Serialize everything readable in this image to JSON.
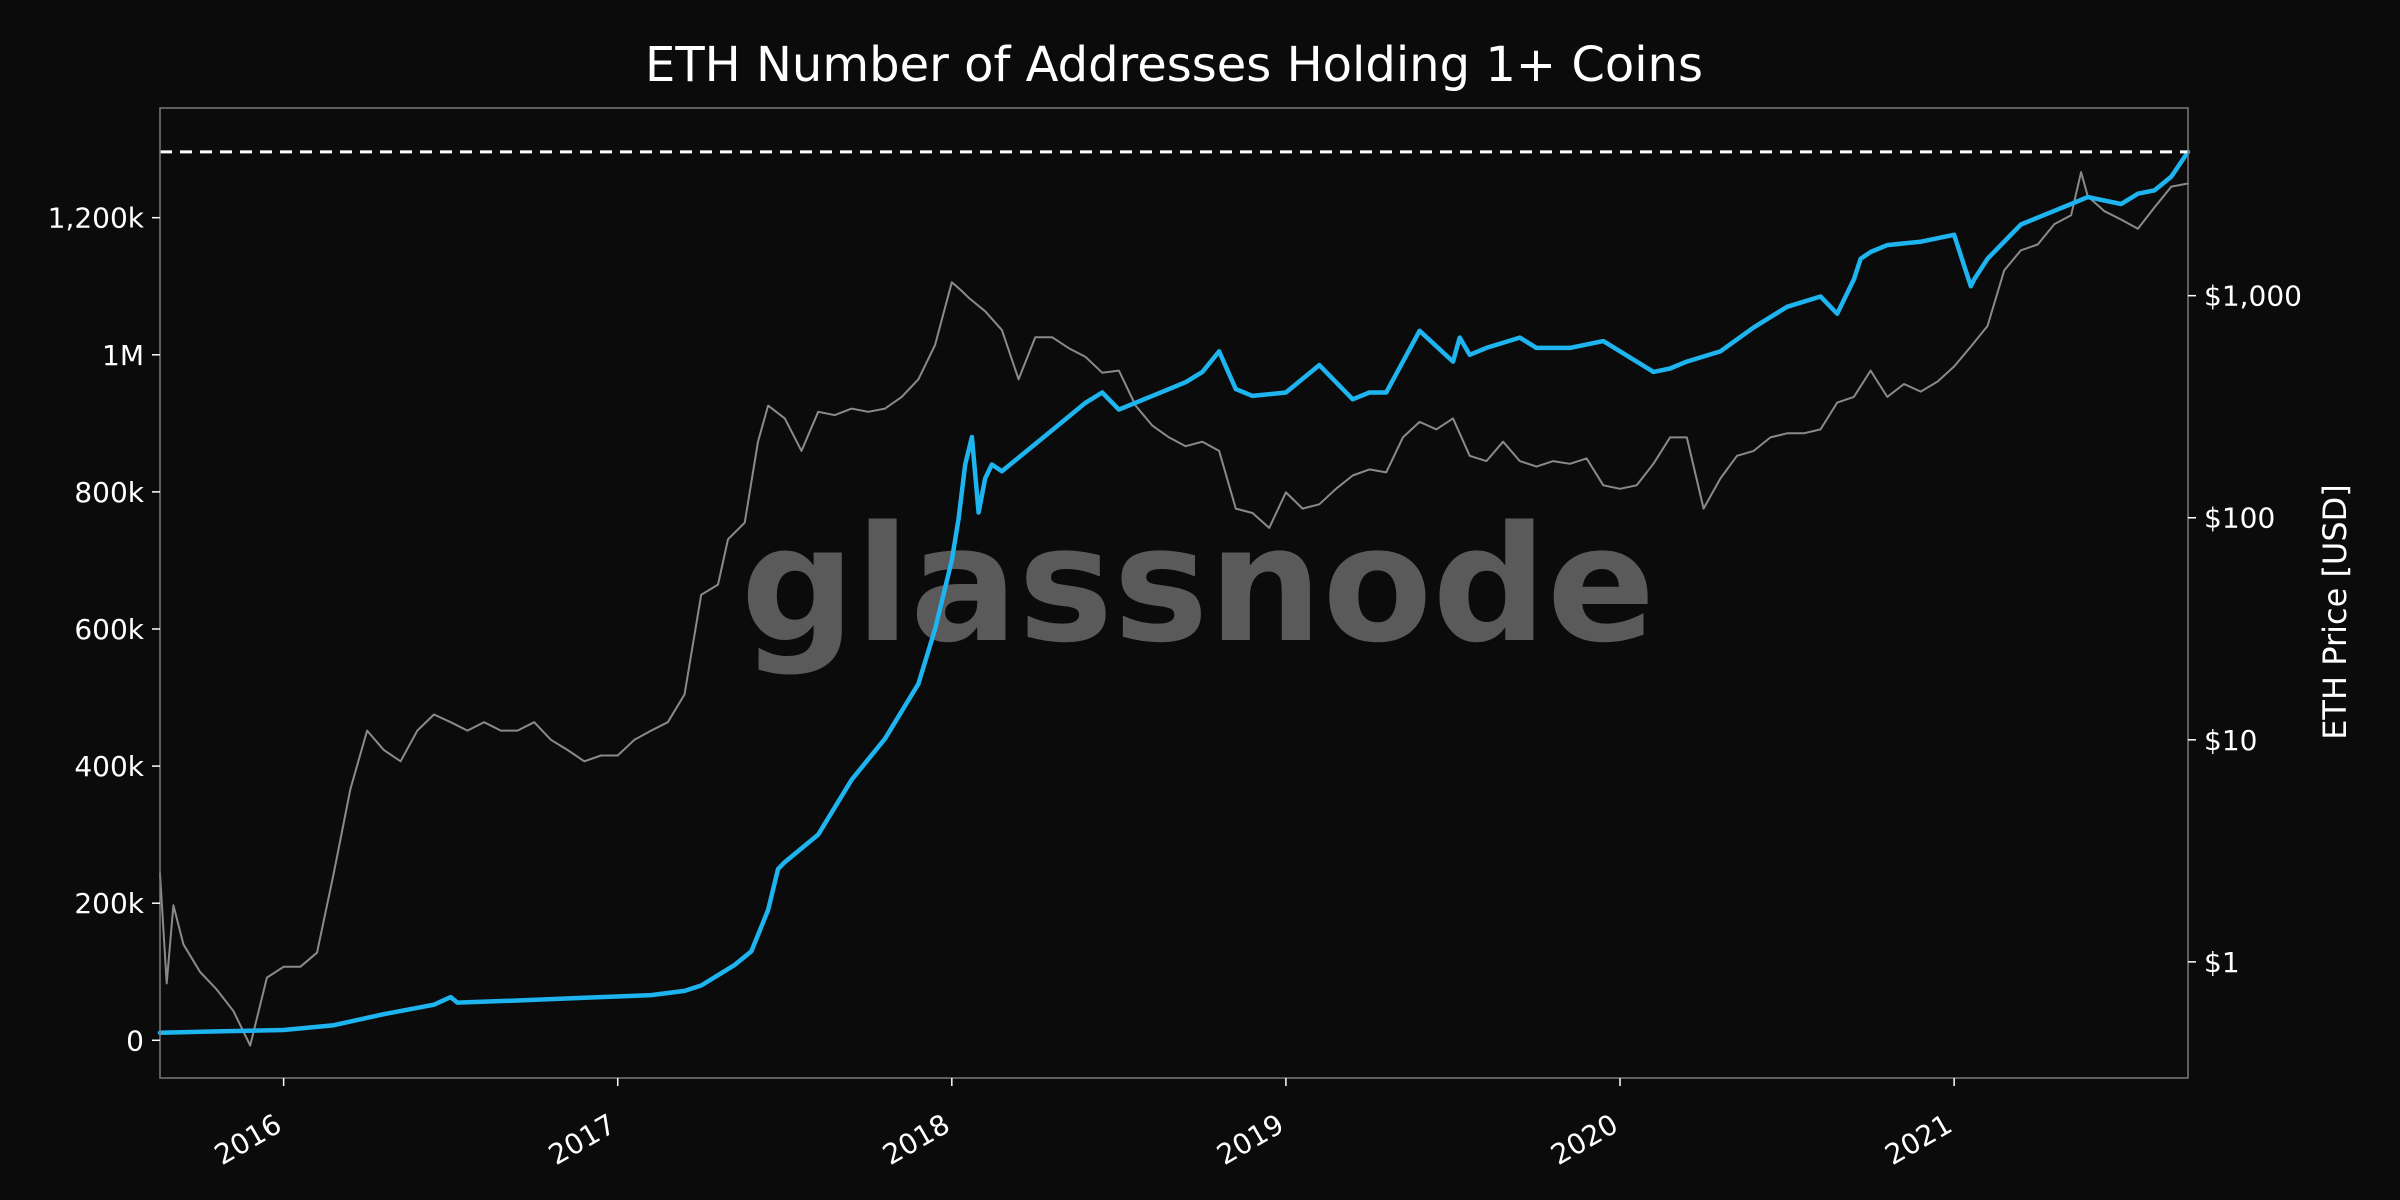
{
  "chart_data": {
    "type": "line",
    "title": "ETH Number of Addresses Holding 1+ Coins",
    "xlabel": "",
    "ylabel_left": "",
    "ylabel_right": "ETH Price [USD]",
    "watermark": "glassnode",
    "x_range": [
      2015.63,
      2021.7
    ],
    "x_ticks": [
      {
        "value": 2016,
        "label": "2016"
      },
      {
        "value": 2017,
        "label": "2017"
      },
      {
        "value": 2018,
        "label": "2018"
      },
      {
        "value": 2019,
        "label": "2019"
      },
      {
        "value": 2020,
        "label": "2020"
      },
      {
        "value": 2021,
        "label": "2021"
      }
    ],
    "y_left_range": [
      -55000,
      1360000
    ],
    "y_left_ticks": [
      {
        "value": 0,
        "label": "0"
      },
      {
        "value": 200000,
        "label": "200k"
      },
      {
        "value": 400000,
        "label": "400k"
      },
      {
        "value": 600000,
        "label": "600k"
      },
      {
        "value": 800000,
        "label": "800k"
      },
      {
        "value": 1000000,
        "label": "1M"
      },
      {
        "value": 1200000,
        "label": "1,200k"
      }
    ],
    "y_right_scale": "log",
    "y_right_range": [
      0.3,
      7000
    ],
    "y_right_ticks": [
      {
        "value": 1,
        "label": "$1"
      },
      {
        "value": 10,
        "label": "$10"
      },
      {
        "value": 100,
        "label": "$100"
      },
      {
        "value": 1000,
        "label": "$1,000"
      }
    ],
    "ath_line": {
      "value": 1296000,
      "style": "dashed",
      "color": "#ffffff"
    },
    "series": [
      {
        "name": "Addresses Holding 1+ Coins",
        "axis": "left",
        "color": "#1db4f0",
        "x": [
          2015.63,
          2015.8,
          2016.0,
          2016.15,
          2016.3,
          2016.45,
          2016.5,
          2016.52,
          2016.7,
          2016.9,
          2017.1,
          2017.2,
          2017.25,
          2017.3,
          2017.35,
          2017.4,
          2017.45,
          2017.48,
          2017.5,
          2017.6,
          2017.7,
          2017.8,
          2017.9,
          2017.95,
          2018.0,
          2018.02,
          2018.04,
          2018.06,
          2018.08,
          2018.1,
          2018.12,
          2018.15,
          2018.2,
          2018.3,
          2018.4,
          2018.45,
          2018.5,
          2018.6,
          2018.7,
          2018.75,
          2018.8,
          2018.85,
          2018.9,
          2019.0,
          2019.1,
          2019.2,
          2019.25,
          2019.3,
          2019.4,
          2019.5,
          2019.52,
          2019.55,
          2019.6,
          2019.7,
          2019.75,
          2019.85,
          2019.95,
          2020.1,
          2020.15,
          2020.2,
          2020.3,
          2020.4,
          2020.5,
          2020.6,
          2020.65,
          2020.7,
          2020.72,
          2020.75,
          2020.8,
          2020.9,
          2021.0,
          2021.05,
          2021.06,
          2021.1,
          2021.2,
          2021.3,
          2021.35,
          2021.4,
          2021.5,
          2021.55,
          2021.6,
          2021.65,
          2021.7
        ],
        "values": [
          11000,
          13000,
          15000,
          22000,
          38000,
          52000,
          63000,
          55000,
          58000,
          62000,
          66000,
          72000,
          80000,
          95000,
          110000,
          130000,
          190000,
          250000,
          260000,
          300000,
          380000,
          440000,
          520000,
          600000,
          700000,
          760000,
          840000,
          880000,
          770000,
          820000,
          840000,
          830000,
          850000,
          890000,
          930000,
          945000,
          920000,
          940000,
          960000,
          975000,
          1005000,
          950000,
          940000,
          945000,
          985000,
          935000,
          945000,
          945000,
          1035000,
          990000,
          1025000,
          1000000,
          1010000,
          1025000,
          1010000,
          1010000,
          1020000,
          975000,
          980000,
          990000,
          1005000,
          1040000,
          1070000,
          1085000,
          1060000,
          1110000,
          1140000,
          1150000,
          1160000,
          1165000,
          1175000,
          1100000,
          1110000,
          1140000,
          1190000,
          1210000,
          1220000,
          1230000,
          1220000,
          1235000,
          1240000,
          1260000,
          1296000
        ]
      },
      {
        "name": "ETH Price",
        "axis": "right",
        "color": "#8a8a8a",
        "x": [
          2015.63,
          2015.65,
          2015.67,
          2015.7,
          2015.75,
          2015.8,
          2015.85,
          2015.9,
          2015.95,
          2016.0,
          2016.05,
          2016.1,
          2016.15,
          2016.2,
          2016.25,
          2016.3,
          2016.35,
          2016.4,
          2016.45,
          2016.5,
          2016.55,
          2016.6,
          2016.65,
          2016.7,
          2016.75,
          2016.8,
          2016.85,
          2016.9,
          2016.95,
          2017.0,
          2017.05,
          2017.1,
          2017.15,
          2017.2,
          2017.25,
          2017.3,
          2017.33,
          2017.38,
          2017.42,
          2017.45,
          2017.5,
          2017.55,
          2017.6,
          2017.65,
          2017.7,
          2017.75,
          2017.8,
          2017.85,
          2017.9,
          2017.95,
          2018.0,
          2018.03,
          2018.05,
          2018.1,
          2018.15,
          2018.2,
          2018.25,
          2018.3,
          2018.35,
          2018.4,
          2018.45,
          2018.5,
          2018.55,
          2018.6,
          2018.65,
          2018.7,
          2018.75,
          2018.8,
          2018.85,
          2018.9,
          2018.95,
          2019.0,
          2019.05,
          2019.1,
          2019.15,
          2019.2,
          2019.25,
          2019.3,
          2019.35,
          2019.4,
          2019.45,
          2019.5,
          2019.55,
          2019.6,
          2019.65,
          2019.7,
          2019.75,
          2019.8,
          2019.85,
          2019.9,
          2019.95,
          2020.0,
          2020.05,
          2020.1,
          2020.15,
          2020.2,
          2020.25,
          2020.3,
          2020.35,
          2020.4,
          2020.45,
          2020.5,
          2020.55,
          2020.6,
          2020.65,
          2020.7,
          2020.75,
          2020.8,
          2020.85,
          2020.9,
          2020.95,
          2021.0,
          2021.05,
          2021.1,
          2021.15,
          2021.2,
          2021.25,
          2021.3,
          2021.35,
          2021.38,
          2021.4,
          2021.45,
          2021.5,
          2021.55,
          2021.6,
          2021.65,
          2021.7
        ],
        "values": [
          2.5,
          0.8,
          1.8,
          1.2,
          0.9,
          0.75,
          0.6,
          0.42,
          0.85,
          0.95,
          0.95,
          1.1,
          2.5,
          6,
          11,
          9,
          8,
          11,
          13,
          12,
          11,
          12,
          11,
          11,
          12,
          10,
          9,
          8,
          8.5,
          8.5,
          10,
          11,
          12,
          16,
          45,
          50,
          80,
          95,
          220,
          320,
          280,
          200,
          300,
          290,
          310,
          300,
          310,
          350,
          420,
          600,
          1150,
          1050,
          980,
          850,
          700,
          420,
          650,
          650,
          580,
          530,
          450,
          460,
          320,
          260,
          230,
          210,
          220,
          200,
          110,
          105,
          90,
          130,
          110,
          115,
          135,
          155,
          165,
          160,
          230,
          270,
          250,
          280,
          190,
          180,
          220,
          180,
          170,
          180,
          175,
          185,
          140,
          135,
          140,
          175,
          230,
          230,
          110,
          150,
          190,
          200,
          230,
          240,
          240,
          250,
          330,
          350,
          460,
          350,
          400,
          370,
          410,
          480,
          590,
          730,
          1300,
          1600,
          1700,
          2100,
          2300,
          3600,
          2800,
          2400,
          2200,
          2000,
          2500,
          3100,
          3200
        ]
      }
    ]
  }
}
